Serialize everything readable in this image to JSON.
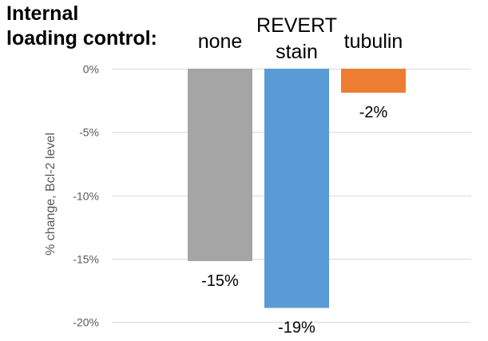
{
  "chart_data": {
    "type": "bar",
    "title_lines": [
      "Internal",
      "loading control:"
    ],
    "categories": [
      {
        "lines": [
          "none"
        ]
      },
      {
        "lines": [
          "REVERT",
          "stain"
        ]
      },
      {
        "lines": [
          "tubulin"
        ]
      }
    ],
    "values": [
      -15.2,
      -18.9,
      -1.9
    ],
    "data_labels": [
      "-15%",
      "-19%",
      "-2%"
    ],
    "colors": [
      "#a5a5a5",
      "#5b9bd5",
      "#ed7d31"
    ],
    "ylabel": "% change,  Bcl-2 level",
    "ylim": [
      -20,
      0
    ],
    "yticks": [
      0,
      -5,
      -10,
      -15,
      -20
    ],
    "ytick_labels": [
      "0%",
      "-5%",
      "-10%",
      "-15%",
      "-20%"
    ],
    "grid": true,
    "gridline_color": "#d9d9d9"
  }
}
